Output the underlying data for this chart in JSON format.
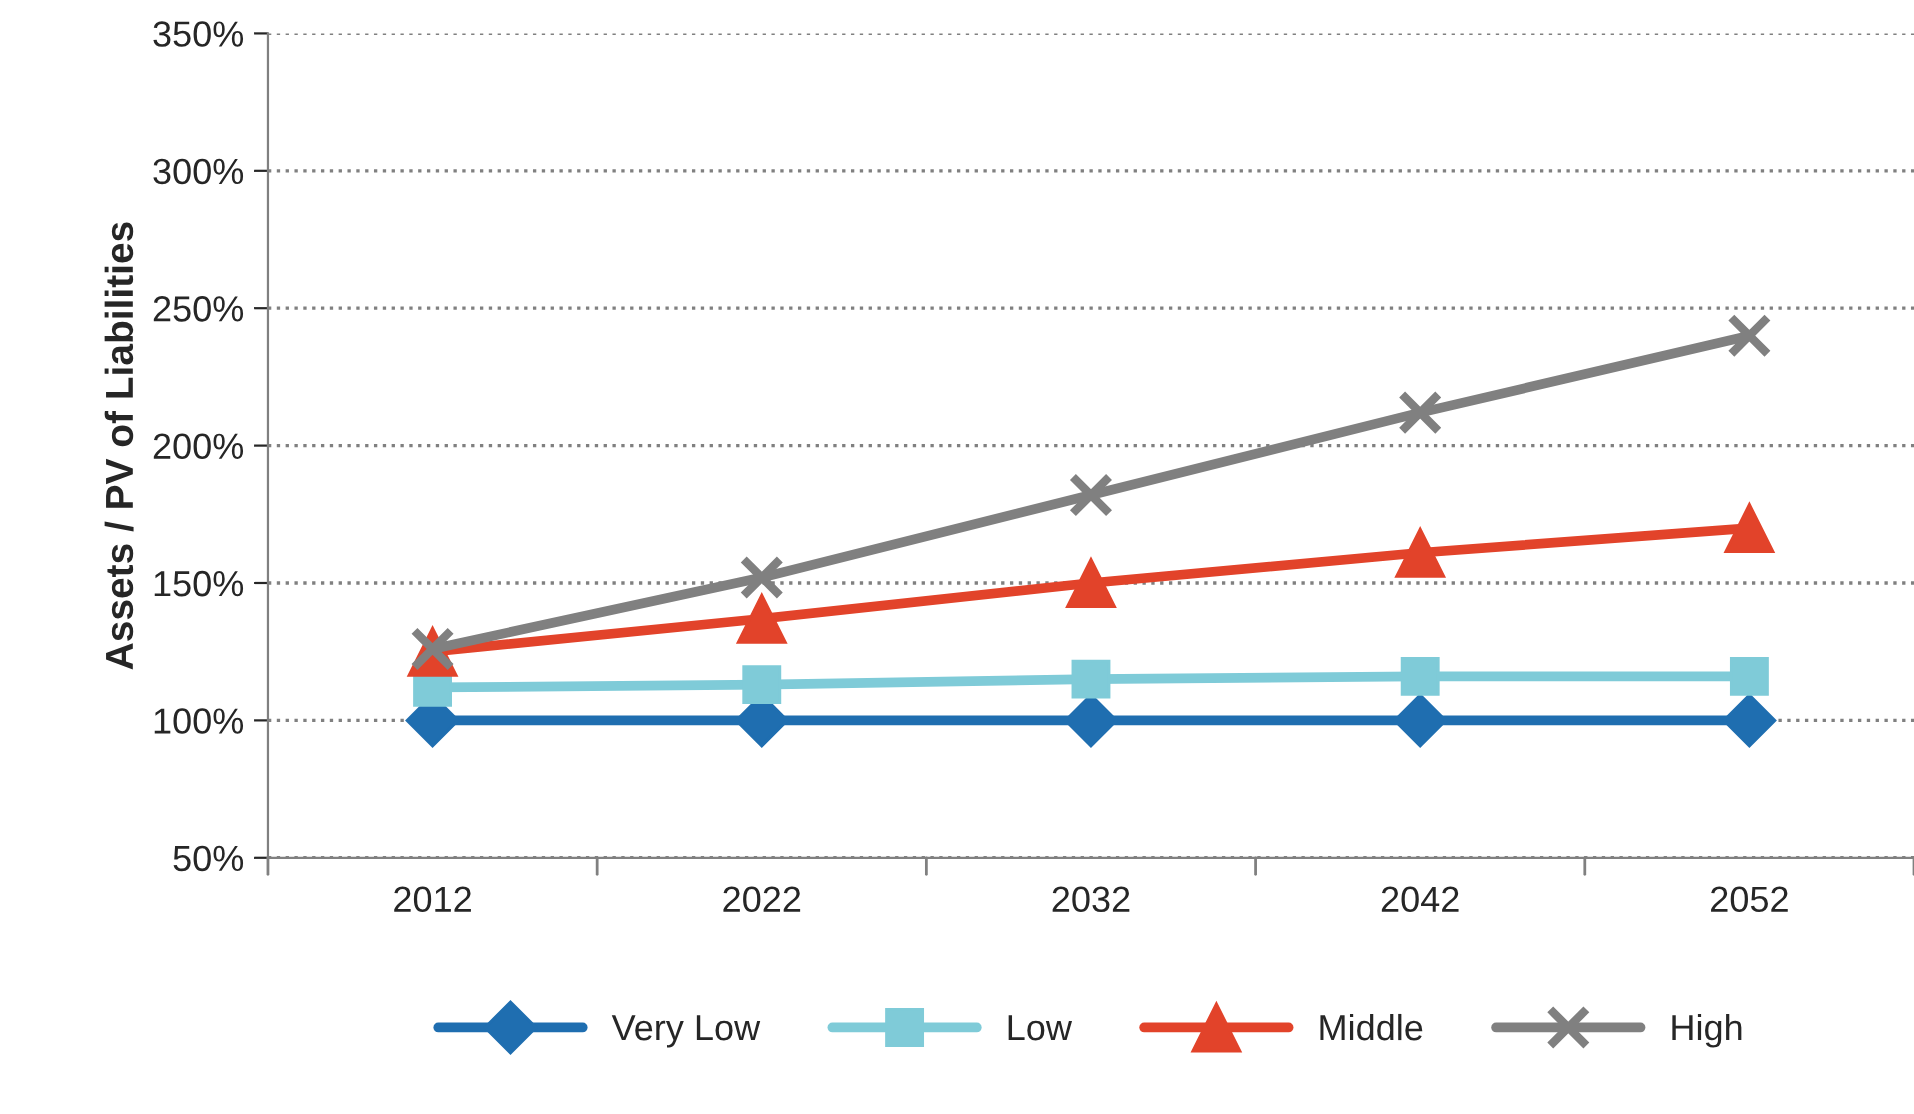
{
  "chart_data": {
    "type": "line",
    "ylabel": "Assets / PV of Liabilities",
    "categories": [
      "2012",
      "2022",
      "2032",
      "2042",
      "2052"
    ],
    "series": [
      {
        "name": "Very Low",
        "color": "#1f6eb0",
        "marker": "diamond",
        "values": [
          100,
          100,
          100,
          100,
          100
        ]
      },
      {
        "name": "Low",
        "color": "#7fcbd8",
        "marker": "square",
        "values": [
          112,
          113,
          115,
          116,
          116
        ]
      },
      {
        "name": "Middle",
        "color": "#e2432a",
        "marker": "triangle",
        "values": [
          125,
          137,
          150,
          161,
          170
        ]
      },
      {
        "name": "High",
        "color": "#808080",
        "marker": "cross",
        "values": [
          126,
          152,
          182,
          212,
          240
        ]
      }
    ],
    "ylim": [
      50,
      350
    ],
    "yticks": [
      {
        "value": 50,
        "label": "50%"
      },
      {
        "value": 100,
        "label": "100%"
      },
      {
        "value": 150,
        "label": "150%"
      },
      {
        "value": 200,
        "label": "200%"
      },
      {
        "value": 250,
        "label": "250%"
      },
      {
        "value": 300,
        "label": "300%"
      },
      {
        "value": 350,
        "label": "350%"
      }
    ],
    "grid": "y",
    "legend": "bottom",
    "line_style": "solid"
  }
}
